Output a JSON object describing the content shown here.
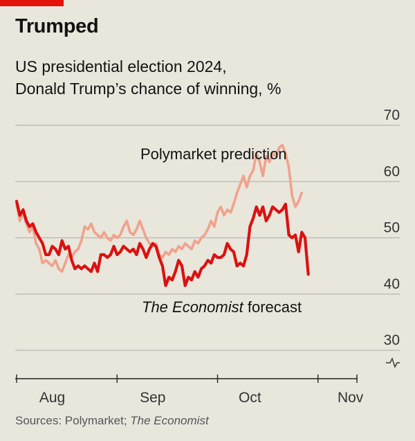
{
  "header": {
    "title": "Trumped",
    "subtitle_line1": "US presidential election 2024,",
    "subtitle_line2": "Donald Trump’s chance of winning, %"
  },
  "source": {
    "prefix": "Sources: Polymarket; ",
    "italic": "The Economist"
  },
  "colors": {
    "background": "#e9e6dc",
    "accent": "#e3120b",
    "economist_line": "#db1111",
    "polymarket_line": "#f0a28c",
    "gridline": "#b9b7ae"
  },
  "chart_data": {
    "type": "line",
    "title": "US presidential election 2024, Donald Trump’s chance of winning, %",
    "xlabel": "",
    "ylabel": "%",
    "ylim": [
      30,
      70
    ],
    "yticks": [
      30,
      40,
      50,
      60,
      70
    ],
    "y_axis_break": true,
    "x_range": [
      "2024-07-21",
      "2024-11-05"
    ],
    "x_ticks": [
      {
        "label": "Aug",
        "day": 11
      },
      {
        "label": "Sep",
        "day": 42
      },
      {
        "label": "Oct",
        "day": 72
      },
      {
        "label": "Nov",
        "day": 103
      }
    ],
    "x_minor_tick_days": [
      0,
      31,
      62,
      93,
      105
    ],
    "annotations": [
      {
        "text": "Polymarket prediction",
        "series": "Polymarket prediction"
      },
      {
        "text_italic": "The Economist",
        "text": " forecast",
        "series": "The Economist forecast"
      }
    ],
    "series": [
      {
        "name": "Polymarket prediction",
        "color": "#f0a28c",
        "day_step": 1,
        "values": [
          56,
          53,
          54.5,
          52.5,
          51,
          52,
          49,
          48,
          45.5,
          46,
          45.5,
          45,
          46,
          44.5,
          44,
          45.5,
          47,
          46.5,
          47.5,
          48,
          49.5,
          52,
          51.5,
          52.5,
          51,
          50.5,
          50,
          51,
          50,
          49.5,
          50.5,
          50,
          50.5,
          52,
          53,
          51,
          50.5,
          51.5,
          53,
          51.5,
          50,
          49,
          48.5,
          49,
          47,
          46.5,
          47.5,
          47,
          48,
          47.5,
          48.5,
          48,
          49,
          48.5,
          48,
          49.5,
          49,
          50,
          50.5,
          51.5,
          53,
          52,
          54.5,
          55.5,
          54,
          55,
          54.5,
          56,
          58,
          59.5,
          61,
          59,
          61,
          62,
          65,
          63.5,
          61,
          64.5,
          63.5,
          65,
          64.5,
          66,
          66.5,
          65,
          62.5,
          57.5,
          55.5,
          56.5,
          58
        ]
      },
      {
        "name": "The Economist forecast",
        "color": "#db1111",
        "day_step": 1,
        "values": [
          56.5,
          54,
          55,
          53,
          52,
          52.5,
          51,
          50,
          49,
          47,
          47,
          48.5,
          48,
          47,
          49.5,
          48,
          48.5,
          46,
          44.5,
          45,
          44.5,
          45,
          44.5,
          44,
          45.5,
          44,
          47,
          47,
          46.5,
          47,
          48.5,
          47,
          47.5,
          48.5,
          48,
          47.5,
          48,
          47,
          49,
          48,
          46.5,
          48,
          49,
          48.5,
          46.5,
          45,
          41.5,
          43,
          42.5,
          44,
          46,
          45,
          41.5,
          43,
          42.5,
          44,
          43,
          44.5,
          45,
          46,
          45.5,
          47,
          46.5,
          46.5,
          47,
          49,
          48,
          47.5,
          45,
          45.5,
          45,
          47,
          52,
          53.5,
          55.5,
          54,
          55.5,
          53,
          54,
          55.5,
          55,
          54.5,
          55,
          56,
          50.5,
          50,
          50.5,
          47.5,
          51,
          50,
          43.5
        ]
      }
    ]
  }
}
